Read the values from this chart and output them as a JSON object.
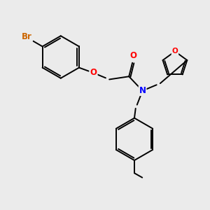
{
  "background_color": "#ebebeb",
  "bond_color": "#000000",
  "bond_width": 1.4,
  "atom_colors": {
    "Br": "#cc6600",
    "O": "#ff0000",
    "N": "#0000ff",
    "C": "#000000"
  },
  "font_size": 8.5,
  "figsize": [
    3.0,
    3.0
  ],
  "dpi": 100
}
